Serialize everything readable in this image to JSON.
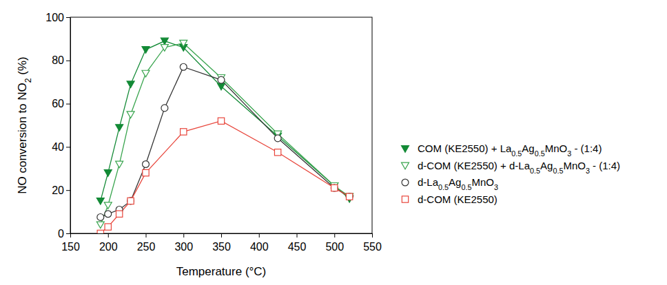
{
  "chart_data": {
    "type": "line",
    "x_label": "Temperature (°C)",
    "y_label": "NO conversion to NO2 (%)",
    "xlim": [
      150,
      550
    ],
    "xticks": [
      150,
      200,
      250,
      300,
      350,
      400,
      450,
      500,
      550
    ],
    "ylim": [
      0,
      100
    ],
    "yticks": [
      0,
      20,
      40,
      60,
      80,
      100
    ],
    "legend": "right",
    "grid": false,
    "series": [
      {
        "name": "COM (KE2550) + La0.5Ag0.5MnO3 - (1:4)",
        "color": "#138a36",
        "marker": "triangle-down-filled",
        "x": [
          190,
          200,
          215,
          230,
          250,
          275,
          300,
          350,
          425,
          500,
          520
        ],
        "values": [
          15,
          28,
          49,
          69,
          85,
          89,
          86,
          68,
          45,
          22,
          16
        ]
      },
      {
        "name": "d-COM (KE2550) + d-La0.5Ag0.5MnO3 - (1:4)",
        "color": "#3aa54f",
        "marker": "triangle-down-open",
        "x": [
          190,
          200,
          215,
          230,
          250,
          275,
          300,
          350,
          425,
          500,
          520
        ],
        "values": [
          4,
          13,
          32,
          55,
          74,
          86,
          88,
          72,
          46,
          22,
          17
        ]
      },
      {
        "name": "d-La0.5Ag0.5MnO3",
        "color": "#333333",
        "marker": "circle-open",
        "x": [
          190,
          200,
          215,
          230,
          250,
          275,
          300,
          350,
          425,
          500,
          520
        ],
        "values": [
          7.5,
          9,
          11,
          15,
          32,
          58,
          77,
          71,
          44,
          21,
          17
        ]
      },
      {
        "name": "d-COM (KE2550)",
        "color": "#e8463c",
        "marker": "square-open",
        "x": [
          190,
          200,
          215,
          230,
          250,
          300,
          350,
          425,
          500,
          520
        ],
        "values": [
          0,
          3,
          9,
          15,
          28,
          47,
          52,
          37.5,
          21,
          17
        ]
      }
    ]
  }
}
